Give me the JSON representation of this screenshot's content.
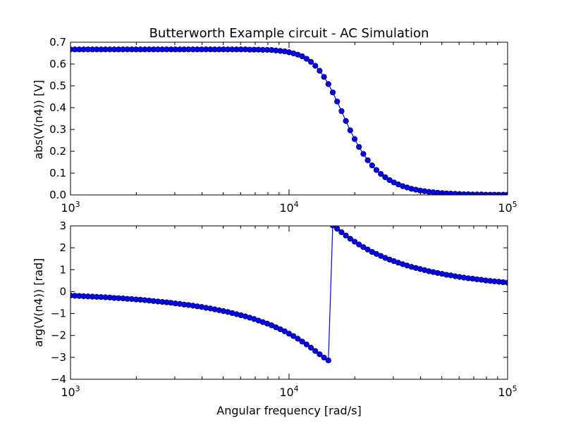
{
  "figure": {
    "title": "Butterworth Example circuit - AC Simulation",
    "xlabel": "Angular frequency [rad/s]"
  },
  "chart_data": [
    {
      "type": "line",
      "marker": "circle",
      "color": "#0000ff",
      "title": "Butterworth Example circuit - AC Simulation",
      "xlabel": "",
      "ylabel": "abs(V(n4)) [V]",
      "xscale": "log",
      "xlim": [
        1000,
        100000
      ],
      "ylim": [
        0,
        0.7
      ],
      "xticks": [
        {
          "value": 1000,
          "base": "10",
          "exp": "3"
        },
        {
          "value": 10000,
          "base": "10",
          "exp": "4"
        },
        {
          "value": 100000,
          "base": "10",
          "exp": "5"
        }
      ],
      "yticks": [
        "0.0",
        "0.1",
        "0.2",
        "0.3",
        "0.4",
        "0.5",
        "0.6",
        "0.7"
      ],
      "grid": false,
      "x": [
        1000,
        1047.1,
        1096.5,
        1148.2,
        1202.3,
        1258.9,
        1318.3,
        1380.4,
        1445.4,
        1513.6,
        1584.9,
        1659.6,
        1737.8,
        1819.7,
        1905.5,
        1995.3,
        2089.3,
        2187.8,
        2290.9,
        2398.8,
        2511.9,
        2630.3,
        2754.2,
        2884.0,
        3019.9,
        3162.3,
        3311.3,
        3467.4,
        3630.8,
        3801.9,
        3981.1,
        4168.7,
        4365.2,
        4570.9,
        4786.3,
        5011.9,
        5248.1,
        5495.4,
        5754.4,
        6025.6,
        6309.6,
        6606.9,
        6918.3,
        7244.4,
        7585.8,
        7943.3,
        8317.6,
        8709.6,
        9120.1,
        9549.9,
        10000,
        10471,
        10965,
        11482,
        12023,
        12589,
        13183,
        13804,
        14454,
        15136,
        15849,
        16596,
        17378,
        18197,
        19055,
        19953,
        20893,
        21878,
        22909,
        23988,
        25119,
        26303,
        27542,
        28840,
        30200,
        31623,
        33113,
        34674,
        36308,
        38019,
        39811,
        41687,
        43652,
        45709,
        47863,
        50119,
        52481,
        54954,
        57544,
        60256,
        63096,
        66069,
        69183,
        72444,
        75858,
        79433,
        83176,
        87096,
        91201,
        95499,
        100000
      ],
      "series": [
        {
          "values": [
            0.667,
            0.667,
            0.667,
            0.667,
            0.667,
            0.667,
            0.667,
            0.667,
            0.667,
            0.667,
            0.667,
            0.667,
            0.667,
            0.667,
            0.667,
            0.667,
            0.667,
            0.667,
            0.667,
            0.667,
            0.667,
            0.667,
            0.667,
            0.667,
            0.667,
            0.667,
            0.667,
            0.667,
            0.667,
            0.667,
            0.667,
            0.667,
            0.667,
            0.667,
            0.667,
            0.667,
            0.667,
            0.667,
            0.667,
            0.667,
            0.667,
            0.666,
            0.666,
            0.666,
            0.665,
            0.665,
            0.664,
            0.662,
            0.66,
            0.658,
            0.654,
            0.649,
            0.643,
            0.635,
            0.624,
            0.61,
            0.592,
            0.569,
            0.541,
            0.508,
            0.47,
            0.428,
            0.384,
            0.339,
            0.296,
            0.256,
            0.22,
            0.188,
            0.159,
            0.135,
            0.114,
            0.096,
            0.081,
            0.068,
            0.057,
            0.048,
            0.04,
            0.034,
            0.028,
            0.024,
            0.02,
            0.017,
            0.014,
            0.012,
            0.01,
            0.008,
            0.007,
            0.006,
            0.005,
            0.004,
            0.003,
            0.003,
            0.002,
            0.002,
            0.002,
            0.001,
            0.001,
            0.001,
            0.001,
            0.001,
            0.001
          ]
        }
      ]
    },
    {
      "type": "line",
      "marker": "circle",
      "color": "#0000ff",
      "title": "",
      "xlabel": "Angular frequency [rad/s]",
      "ylabel": "arg(V(n4)) [rad]",
      "xscale": "log",
      "xlim": [
        1000,
        100000
      ],
      "ylim": [
        -4,
        3
      ],
      "xticks": [
        {
          "value": 1000,
          "base": "10",
          "exp": "3"
        },
        {
          "value": 10000,
          "base": "10",
          "exp": "4"
        },
        {
          "value": 100000,
          "base": "10",
          "exp": "5"
        }
      ],
      "yticks": [
        "−4",
        "−3",
        "−2",
        "−1",
        "0",
        "1",
        "2",
        "3"
      ],
      "grid": false,
      "x": [
        1000,
        1047.1,
        1096.5,
        1148.2,
        1202.3,
        1258.9,
        1318.3,
        1380.4,
        1445.4,
        1513.6,
        1584.9,
        1659.6,
        1737.8,
        1819.7,
        1905.5,
        1995.3,
        2089.3,
        2187.8,
        2290.9,
        2398.8,
        2511.9,
        2630.3,
        2754.2,
        2884.0,
        3019.9,
        3162.3,
        3311.3,
        3467.4,
        3630.8,
        3801.9,
        3981.1,
        4168.7,
        4365.2,
        4570.9,
        4786.3,
        5011.9,
        5248.1,
        5495.4,
        5754.4,
        6025.6,
        6309.6,
        6606.9,
        6918.3,
        7244.4,
        7585.8,
        7943.3,
        8317.6,
        8709.6,
        9120.1,
        9549.9,
        10000,
        10471,
        10965,
        11482,
        12023,
        12589,
        13183,
        13804,
        14454,
        15136,
        15849,
        16596,
        17378,
        18197,
        19055,
        19953,
        20893,
        21878,
        22909,
        23988,
        25119,
        26303,
        27542,
        28840,
        30200,
        31623,
        33113,
        34674,
        36308,
        38019,
        39811,
        41687,
        43652,
        45709,
        47863,
        50119,
        52481,
        54954,
        57544,
        60256,
        63096,
        66069,
        69183,
        72444,
        75858,
        79433,
        83176,
        87096,
        91201,
        95499,
        100000
      ],
      "series": [
        {
          "values": [
            -0.18,
            -0.19,
            -0.2,
            -0.21,
            -0.22,
            -0.23,
            -0.24,
            -0.25,
            -0.26,
            -0.27,
            -0.29,
            -0.3,
            -0.31,
            -0.33,
            -0.34,
            -0.36,
            -0.37,
            -0.39,
            -0.41,
            -0.43,
            -0.45,
            -0.47,
            -0.49,
            -0.51,
            -0.54,
            -0.56,
            -0.59,
            -0.61,
            -0.64,
            -0.67,
            -0.7,
            -0.74,
            -0.77,
            -0.81,
            -0.85,
            -0.89,
            -0.93,
            -0.98,
            -1.03,
            -1.08,
            -1.13,
            -1.19,
            -1.25,
            -1.32,
            -1.39,
            -1.46,
            -1.54,
            -1.63,
            -1.72,
            -1.81,
            -1.92,
            -2.03,
            -2.15,
            -2.28,
            -2.41,
            -2.56,
            -2.71,
            -2.86,
            -3.01,
            -3.14,
            3.02,
            2.87,
            2.71,
            2.56,
            2.41,
            2.28,
            2.15,
            2.03,
            1.92,
            1.81,
            1.72,
            1.63,
            1.54,
            1.46,
            1.39,
            1.32,
            1.25,
            1.19,
            1.13,
            1.08,
            1.03,
            0.98,
            0.93,
            0.89,
            0.85,
            0.81,
            0.77,
            0.74,
            0.7,
            0.67,
            0.64,
            0.61,
            0.59,
            0.56,
            0.54,
            0.51,
            0.49,
            0.47,
            0.45,
            0.43,
            0.41
          ]
        }
      ]
    }
  ]
}
